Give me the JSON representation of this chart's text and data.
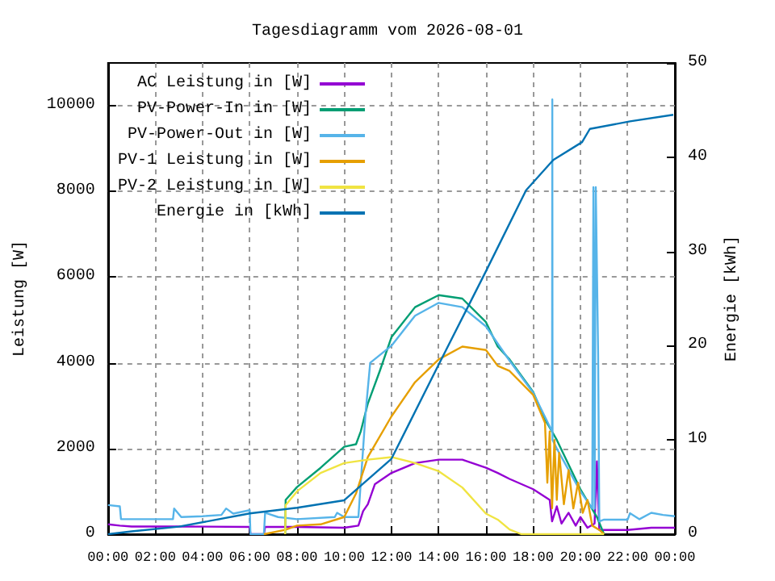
{
  "chart_data": {
    "type": "line",
    "title": "Tagesdiagramm vom 2026-08-01",
    "ylabel": "Leistung [W]",
    "y2label": "Energie [kWh]",
    "xlim": [
      0,
      24
    ],
    "xticks": [
      {
        "value": 0,
        "label": "00:00"
      },
      {
        "value": 2,
        "label": "02:00"
      },
      {
        "value": 4,
        "label": "04:00"
      },
      {
        "value": 6,
        "label": "06:00"
      },
      {
        "value": 8,
        "label": "08:00"
      },
      {
        "value": 10,
        "label": "10:00"
      },
      {
        "value": 12,
        "label": "12:00"
      },
      {
        "value": 14,
        "label": "14:00"
      },
      {
        "value": 16,
        "label": "16:00"
      },
      {
        "value": 18,
        "label": "18:00"
      },
      {
        "value": 20,
        "label": "20:00"
      },
      {
        "value": 22,
        "label": "22:00"
      },
      {
        "value": 24,
        "label": "00:00"
      }
    ],
    "ylim": [
      0,
      11000
    ],
    "yticks": [
      0,
      2000,
      4000,
      6000,
      8000,
      10000
    ],
    "y2lim": [
      0,
      50
    ],
    "y2ticks": [
      0,
      10,
      20,
      30,
      40,
      50
    ],
    "grid": true,
    "legend": "top left",
    "marker": "none",
    "line_style": "solid",
    "series": [
      {
        "name": "AC Leistung in [W]",
        "color": "#9400d3",
        "x": [
          0,
          0.5,
          1,
          3,
          6,
          6.03,
          6.6,
          6.65,
          8,
          10,
          10.6,
          10.8,
          11,
          11.3,
          12,
          13,
          14,
          15,
          16,
          16.5,
          17,
          18,
          18.7,
          18.8,
          19,
          19.2,
          19.5,
          19.8,
          20,
          20.3,
          20.6,
          20.7,
          20.8,
          21,
          22,
          23,
          24
        ],
        "values": [
          230,
          200,
          180,
          180,
          170,
          0,
          0,
          170,
          170,
          150,
          200,
          540,
          700,
          1170,
          1430,
          1660,
          1740,
          1740,
          1550,
          1430,
          1290,
          1050,
          800,
          300,
          650,
          250,
          500,
          200,
          400,
          150,
          250,
          1700,
          100,
          100,
          100,
          150,
          150
        ]
      },
      {
        "name": "PV-Power-In in [W]",
        "color": "#009e73",
        "x": [
          7.5,
          7.52,
          8,
          9,
          10,
          10.5,
          10.7,
          11,
          11.5,
          12,
          13,
          14,
          15,
          16,
          16.5,
          17,
          18,
          18.5,
          19,
          20,
          20.7,
          21
        ],
        "values": [
          0,
          800,
          1100,
          1550,
          2040,
          2100,
          2400,
          3050,
          3800,
          4600,
          5300,
          5580,
          5500,
          4950,
          4380,
          4080,
          3320,
          2680,
          2200,
          1050,
          400,
          0
        ]
      },
      {
        "name": "PV-Power-Out in [W]",
        "color": "#56b4e9",
        "x": [
          0,
          0.5,
          0.55,
          2.75,
          2.8,
          3.1,
          4,
          4.8,
          5,
          5.3,
          6,
          6.03,
          6.6,
          6.65,
          7.2,
          8,
          9.6,
          9.7,
          10,
          10.6,
          10.9,
          11.1,
          12,
          13,
          14,
          15,
          16,
          17,
          18,
          18.8,
          18.81,
          18.82,
          19,
          20,
          20.5,
          20.55,
          20.6,
          20.65,
          20.75,
          20.8,
          21,
          22,
          22.1,
          22.5,
          23,
          23.5,
          24
        ],
        "values": [
          680,
          650,
          350,
          350,
          600,
          400,
          420,
          450,
          600,
          480,
          560,
          0,
          0,
          500,
          400,
          350,
          400,
          500,
          400,
          400,
          2800,
          4000,
          4400,
          5100,
          5400,
          5300,
          4850,
          4050,
          3300,
          2400,
          10150,
          2200,
          2000,
          1000,
          600,
          8100,
          600,
          8100,
          4200,
          300,
          340,
          340,
          490,
          350,
          500,
          450,
          420
        ]
      },
      {
        "name": "PV-1 Leistung in [W]",
        "color": "#e69f00",
        "x": [
          6.6,
          7.5,
          8,
          9,
          10,
          10.5,
          11,
          12,
          13,
          14,
          15,
          16,
          16.5,
          17,
          18,
          18.5,
          18.6,
          18.7,
          18.8,
          18.9,
          19,
          19.1,
          19.3,
          19.5,
          19.7,
          19.9,
          20.1,
          20.3,
          20.5,
          20.8,
          21
        ],
        "values": [
          0,
          100,
          200,
          230,
          400,
          950,
          1800,
          2750,
          3550,
          4080,
          4380,
          4300,
          3930,
          3810,
          3250,
          2600,
          1200,
          2400,
          600,
          2200,
          800,
          1900,
          700,
          1500,
          600,
          1200,
          500,
          800,
          200,
          100,
          0
        ]
      },
      {
        "name": "PV-2 Leistung in [W]",
        "color": "#f0e442",
        "x": [
          7.5,
          7.52,
          8,
          9,
          10,
          11,
          12,
          13,
          14,
          15,
          16,
          16.5,
          17,
          17.5,
          21
        ],
        "values": [
          0,
          680,
          1000,
          1430,
          1660,
          1740,
          1800,
          1660,
          1470,
          1090,
          480,
          340,
          110,
          0,
          0
        ]
      },
      {
        "name": "Energie in [kWh]",
        "color": "#0072b2",
        "axis": "y2",
        "x": [
          0,
          1,
          3,
          6,
          8,
          10,
          12,
          14,
          16,
          17.7,
          18.85,
          20.07,
          20.4,
          22.1,
          23.93
        ],
        "values": [
          0,
          0.3,
          0.8,
          2.2,
          2.8,
          3.6,
          8,
          18,
          27.9,
          36.5,
          39.7,
          41.6,
          43,
          43.8,
          44.5
        ]
      }
    ]
  }
}
